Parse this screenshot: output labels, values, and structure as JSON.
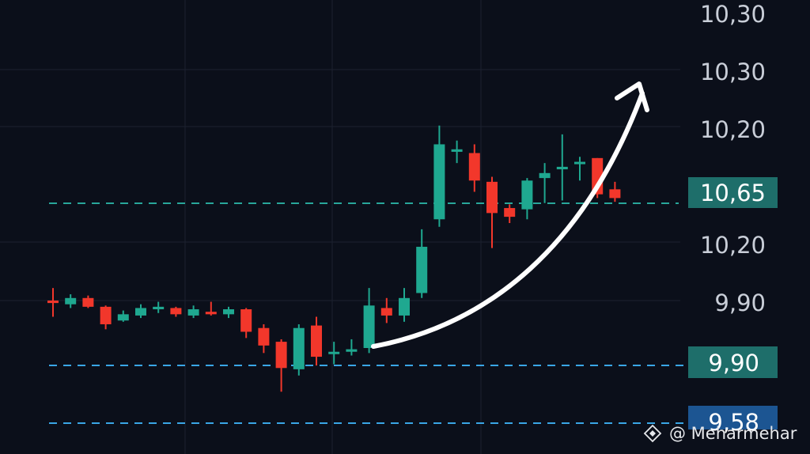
{
  "chart_data": {
    "type": "candlestick",
    "title": "",
    "grid": true,
    "colors": {
      "background": "#0b0f1a",
      "up": "#1fa890",
      "down": "#f2372b",
      "grid": "#1c2230",
      "label": "#c9ced8",
      "arrow": "#ffffff"
    },
    "y_axis_labels": [
      "10,30",
      "10,30",
      "10,20",
      "10,20",
      "9,90"
    ],
    "price_levels": [
      {
        "label": "10,65",
        "color": "#28a79b",
        "badge": "#1e6e6a"
      },
      {
        "label": "9,90",
        "color": "#3aa6e6",
        "badge": "#1e6e6a"
      },
      {
        "label": "9,58",
        "color": "#3aa6e6",
        "badge": "#1c5592"
      }
    ],
    "candles": [
      {
        "dir": "down",
        "open": 38,
        "close": 36,
        "high": 48,
        "low": 25
      },
      {
        "dir": "up",
        "open": 35,
        "close": 40,
        "high": 43,
        "low": 32
      },
      {
        "dir": "down",
        "open": 40,
        "close": 33,
        "high": 42,
        "low": 32
      },
      {
        "dir": "down",
        "open": 33,
        "close": 19,
        "high": 34,
        "low": 15
      },
      {
        "dir": "up",
        "open": 22,
        "close": 27,
        "high": 30,
        "low": 21
      },
      {
        "dir": "up",
        "open": 26,
        "close": 32,
        "high": 35,
        "low": 24
      },
      {
        "dir": "up",
        "open": 31,
        "close": 33,
        "high": 37,
        "low": 28
      },
      {
        "dir": "down",
        "open": 32,
        "close": 27,
        "high": 33,
        "low": 25
      },
      {
        "dir": "up",
        "open": 26,
        "close": 31,
        "high": 34,
        "low": 24
      },
      {
        "dir": "down",
        "open": 29,
        "close": 27,
        "high": 37,
        "low": 26
      },
      {
        "dir": "up",
        "open": 27,
        "close": 31,
        "high": 33,
        "low": 24
      },
      {
        "dir": "down",
        "open": 31,
        "close": 13,
        "high": 32,
        "low": 8
      },
      {
        "dir": "down",
        "open": 16,
        "close": 2,
        "high": 19,
        "low": -4
      },
      {
        "dir": "down",
        "open": 5,
        "close": -16,
        "high": 7,
        "low": -35
      },
      {
        "dir": "up",
        "open": -17,
        "close": 16,
        "high": 19,
        "low": -22
      },
      {
        "dir": "down",
        "open": 18,
        "close": -7,
        "high": 25,
        "low": -14
      },
      {
        "dir": "up",
        "open": -4,
        "close": -3,
        "high": 5,
        "low": -13
      },
      {
        "dir": "up",
        "open": -3,
        "close": -1,
        "high": 7,
        "low": -6
      },
      {
        "dir": "up",
        "open": 0,
        "close": 34,
        "high": 48,
        "low": -4
      },
      {
        "dir": "down",
        "open": 32,
        "close": 26,
        "high": 40,
        "low": 20
      },
      {
        "dir": "up",
        "open": 26,
        "close": 40,
        "high": 48,
        "low": 21
      },
      {
        "dir": "up",
        "open": 44,
        "close": 81,
        "high": 95,
        "low": 40
      },
      {
        "dir": "up",
        "open": 103,
        "close": 163,
        "high": 178,
        "low": 97
      },
      {
        "dir": "up",
        "open": 157,
        "close": 159,
        "high": 166,
        "low": 148
      },
      {
        "dir": "down",
        "open": 156,
        "close": 134,
        "high": 163,
        "low": 125
      },
      {
        "dir": "down",
        "open": 133,
        "close": 108,
        "high": 137,
        "low": 80
      },
      {
        "dir": "down",
        "open": 112,
        "close": 105,
        "high": 115,
        "low": 100
      },
      {
        "dir": "up",
        "open": 111,
        "close": 134,
        "high": 136,
        "low": 103
      },
      {
        "dir": "up",
        "open": 136,
        "close": 140,
        "high": 148,
        "low": 116
      },
      {
        "dir": "up",
        "open": 143,
        "close": 145,
        "high": 171,
        "low": 118
      },
      {
        "dir": "up",
        "open": 148,
        "close": 149,
        "high": 153,
        "low": 134
      },
      {
        "dir": "down",
        "open": 152,
        "close": 123,
        "high": 152,
        "low": 120
      },
      {
        "dir": "down",
        "open": 127,
        "close": 120,
        "high": 133,
        "low": 117
      }
    ],
    "annotation": "upward trend arrow"
  },
  "watermark": {
    "logo_icon": "binance-diamond-icon",
    "text": "@ Meharmehar"
  }
}
